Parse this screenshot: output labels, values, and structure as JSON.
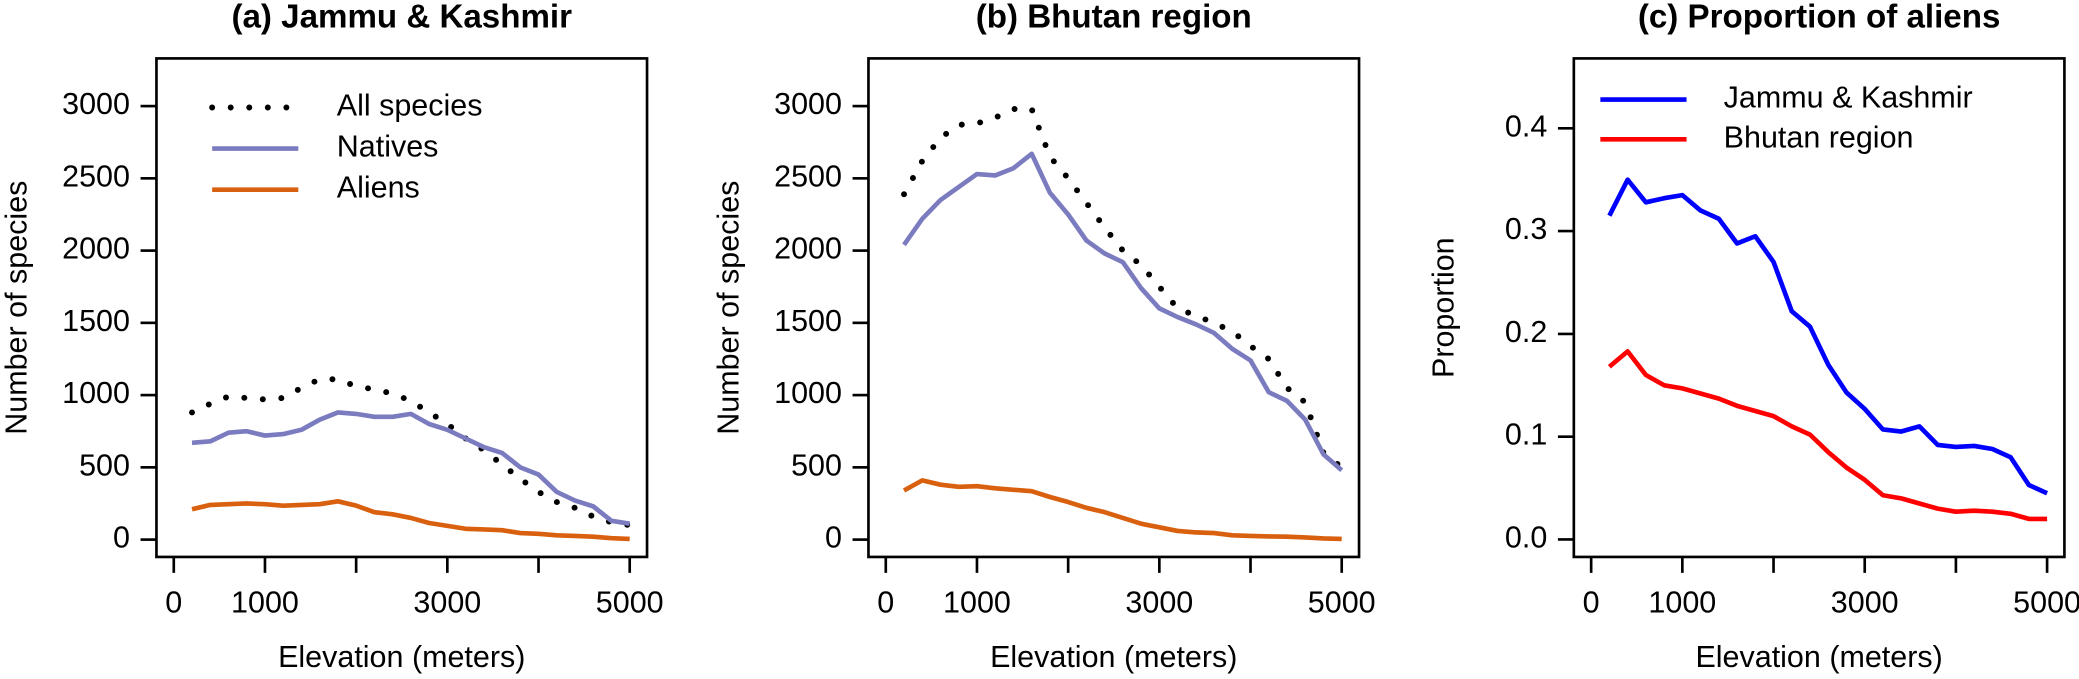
{
  "chart_data": [
    {
      "type": "line",
      "title": "(a) Jammu & Kashmir",
      "xlabel": "Elevation (meters)",
      "ylabel": "Number of species",
      "x": [
        200,
        400,
        600,
        800,
        1000,
        1200,
        1400,
        1600,
        1800,
        2000,
        2200,
        2400,
        2600,
        2800,
        3000,
        3200,
        3400,
        3600,
        3800,
        4000,
        4200,
        4400,
        4600,
        4800,
        5000
      ],
      "series": [
        {
          "name": "All species",
          "color": "#000000",
          "style": "dotted",
          "values": [
            880,
            940,
            990,
            980,
            970,
            980,
            1050,
            1110,
            1110,
            1060,
            1040,
            1010,
            960,
            880,
            800,
            700,
            620,
            520,
            420,
            330,
            260,
            220,
            160,
            120,
            100
          ]
        },
        {
          "name": "Natives",
          "color": "#7b7bc0",
          "style": "solid",
          "values": [
            670,
            680,
            740,
            750,
            720,
            730,
            760,
            830,
            880,
            870,
            850,
            850,
            870,
            800,
            760,
            700,
            640,
            600,
            500,
            450,
            330,
            270,
            230,
            130,
            110
          ]
        },
        {
          "name": "Aliens",
          "color": "#d9600f",
          "style": "solid",
          "values": [
            210,
            240,
            245,
            250,
            245,
            235,
            240,
            245,
            265,
            235,
            190,
            175,
            150,
            115,
            95,
            75,
            70,
            65,
            45,
            40,
            30,
            25,
            20,
            10,
            5
          ]
        }
      ],
      "xlim": [
        -190,
        5190
      ],
      "xticks": [
        0,
        1000,
        3000,
        5000
      ],
      "xticks_unlabeled": [
        2000,
        4000
      ],
      "ylim": [
        -120,
        3330
      ],
      "yticks": [
        0,
        500,
        1000,
        1500,
        2000,
        2500,
        3000
      ],
      "legend": "top-left"
    },
    {
      "type": "line",
      "title": "(b) Bhutan region",
      "xlabel": "Elevation (meters)",
      "ylabel": "Number of species",
      "x": [
        200,
        400,
        600,
        800,
        1000,
        1200,
        1400,
        1600,
        1800,
        2000,
        2200,
        2400,
        2600,
        2800,
        3000,
        3200,
        3400,
        3600,
        3800,
        4000,
        4200,
        4400,
        4600,
        4800,
        5000
      ],
      "series": [
        {
          "name": "All species",
          "color": "#000000",
          "style": "dotted",
          "values": [
            2390,
            2620,
            2780,
            2870,
            2880,
            2920,
            2980,
            2980,
            2650,
            2500,
            2330,
            2160,
            2000,
            1900,
            1750,
            1600,
            1550,
            1500,
            1440,
            1340,
            1250,
            1050,
            950,
            600,
            500
          ]
        },
        {
          "name": "Natives",
          "color": "#7b7bc0",
          "style": "solid",
          "values": [
            2040,
            2220,
            2350,
            2440,
            2530,
            2520,
            2570,
            2670,
            2400,
            2250,
            2070,
            1980,
            1920,
            1740,
            1600,
            1540,
            1490,
            1430,
            1320,
            1240,
            1020,
            960,
            830,
            590,
            480
          ]
        },
        {
          "name": "Aliens",
          "color": "#d9600f",
          "style": "solid",
          "values": [
            340,
            410,
            380,
            365,
            370,
            355,
            345,
            335,
            295,
            260,
            220,
            190,
            150,
            110,
            85,
            60,
            50,
            45,
            30,
            25,
            22,
            20,
            15,
            8,
            5
          ]
        }
      ],
      "xlim": [
        -190,
        5190
      ],
      "xticks": [
        0,
        1000,
        3000,
        5000
      ],
      "xticks_unlabeled": [
        2000,
        4000
      ],
      "ylim": [
        -120,
        3330
      ],
      "yticks": [
        0,
        500,
        1000,
        1500,
        2000,
        2500,
        3000
      ]
    },
    {
      "type": "line",
      "title": "(c) Proportion of aliens",
      "xlabel": "Elevation (meters)",
      "ylabel": "Proportion",
      "x": [
        200,
        400,
        600,
        800,
        1000,
        1200,
        1400,
        1600,
        1800,
        2000,
        2200,
        2400,
        2600,
        2800,
        3000,
        3200,
        3400,
        3600,
        3800,
        4000,
        4200,
        4400,
        4600,
        4800,
        5000
      ],
      "series": [
        {
          "name": "Jammu & Kashmir",
          "color": "#0000ff",
          "style": "solid",
          "values": [
            0.315,
            0.35,
            0.328,
            0.332,
            0.335,
            0.32,
            0.312,
            0.288,
            0.295,
            0.27,
            0.222,
            0.207,
            0.17,
            0.143,
            0.127,
            0.107,
            0.105,
            0.11,
            0.092,
            0.09,
            0.091,
            0.088,
            0.08,
            0.053,
            0.045
          ]
        },
        {
          "name": "Bhutan region",
          "color": "#ff0000",
          "style": "solid",
          "values": [
            0.168,
            0.183,
            0.16,
            0.15,
            0.147,
            0.142,
            0.137,
            0.13,
            0.125,
            0.12,
            0.11,
            0.102,
            0.085,
            0.07,
            0.058,
            0.043,
            0.04,
            0.035,
            0.03,
            0.027,
            0.028,
            0.027,
            0.025,
            0.02,
            0.02
          ]
        }
      ],
      "xlim": [
        -190,
        5190
      ],
      "xticks": [
        0,
        1000,
        3000,
        5000
      ],
      "xticks_unlabeled": [
        2000,
        4000
      ],
      "ylim": [
        -0.017,
        0.468
      ],
      "yticks": [
        {
          "value": 0,
          "label": "0.0"
        },
        0.1,
        0.2,
        0.3,
        0.4
      ],
      "legend": "top-left"
    }
  ]
}
